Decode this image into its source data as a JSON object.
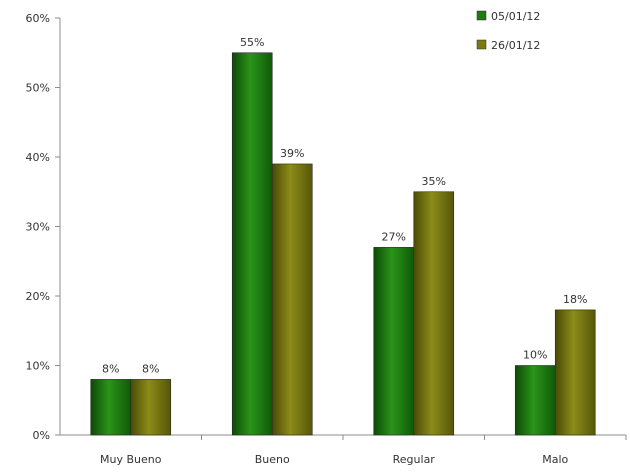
{
  "chart_data": {
    "type": "bar",
    "title": "",
    "xlabel": "",
    "ylabel": "",
    "categories": [
      "Muy Bueno",
      "Bueno",
      "Regular",
      "Malo"
    ],
    "series": [
      {
        "name": "05/01/12",
        "values": [
          8,
          55,
          27,
          10
        ],
        "color": "#1f7a12",
        "value_labels": [
          "8%",
          "55%",
          "27%",
          "10%"
        ]
      },
      {
        "name": "26/01/12",
        "values": [
          8,
          39,
          35,
          18
        ],
        "color": "#7a7a10",
        "value_labels": [
          "8%",
          "39%",
          "35%",
          "18%"
        ]
      }
    ],
    "ylim": [
      0,
      60
    ],
    "y_ticks": [
      0,
      10,
      20,
      30,
      40,
      50,
      60
    ],
    "y_tick_labels": [
      "0%",
      "10%",
      "20%",
      "30%",
      "40%",
      "50%",
      "60%"
    ],
    "grid": false,
    "legend_position": "top-right"
  }
}
